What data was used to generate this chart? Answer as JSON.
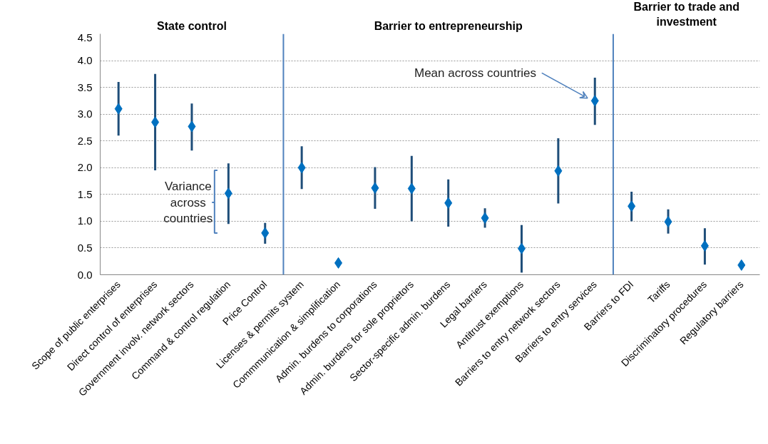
{
  "chart_data": {
    "type": "scatter",
    "categories": [
      "Scope of public enterprises",
      "Direct control of enterprises",
      "Government involv. network sectors",
      "Command & control regulation",
      "Price Control",
      "Licenses & permits system",
      "Commmunication & simplification",
      "Admin. burdens to corporations",
      "Admin. burdens for sole proprietors",
      "Sector-specific admin. burdens",
      "Legal barriers",
      "Antitrust exemptions",
      "Barriers to entry network sectors",
      "Barriers to entry services",
      "Barriers to FDI",
      "Tariffs",
      "Discriminatory procedures",
      "Regulatory barriers"
    ],
    "series": [
      {
        "color": "#0070c0",
        "values": [
          3.1,
          2.85,
          2.77,
          1.52,
          0.78,
          2.0,
          0.22,
          1.62,
          1.61,
          1.34,
          1.06,
          0.49,
          1.94,
          3.25,
          1.28,
          0.99,
          0.54,
          0.18
        ],
        "errors": [
          [
            2.6,
            3.6
          ],
          [
            1.95,
            3.75
          ],
          [
            2.32,
            3.2
          ],
          [
            0.95,
            2.08
          ],
          [
            0.58,
            0.97
          ],
          [
            1.6,
            2.4
          ],
          null,
          [
            1.23,
            2.01
          ],
          [
            1.0,
            2.22
          ],
          [
            0.9,
            1.78
          ],
          [
            0.88,
            1.24
          ],
          [
            0.04,
            0.93
          ],
          [
            1.33,
            2.55
          ],
          [
            2.8,
            3.68
          ],
          [
            1.0,
            1.55
          ],
          [
            0.77,
            1.22
          ],
          [
            0.19,
            0.87
          ],
          null
        ]
      }
    ],
    "marker": "diamond",
    "ylim": [
      0,
      4.5
    ],
    "yticks": [
      {
        "value": 0,
        "label": "0.0"
      },
      {
        "value": 0.5,
        "label": "0.5"
      },
      {
        "value": 1,
        "label": "1.0"
      },
      {
        "value": 1.5,
        "label": "1.5"
      },
      {
        "value": 2,
        "label": "2.0"
      },
      {
        "value": 2.5,
        "label": "2.5"
      },
      {
        "value": 3,
        "label": "3.0"
      },
      {
        "value": 3.5,
        "label": "3.5"
      },
      {
        "value": 4,
        "label": "4.0"
      },
      {
        "value": 4.5,
        "label": "4.5"
      }
    ],
    "grid": "y",
    "annotations": [
      "State control",
      "Barrier to entrepreneurship",
      "Barrier to trade and investment",
      "Variance across countries",
      "Mean across countries"
    ]
  }
}
